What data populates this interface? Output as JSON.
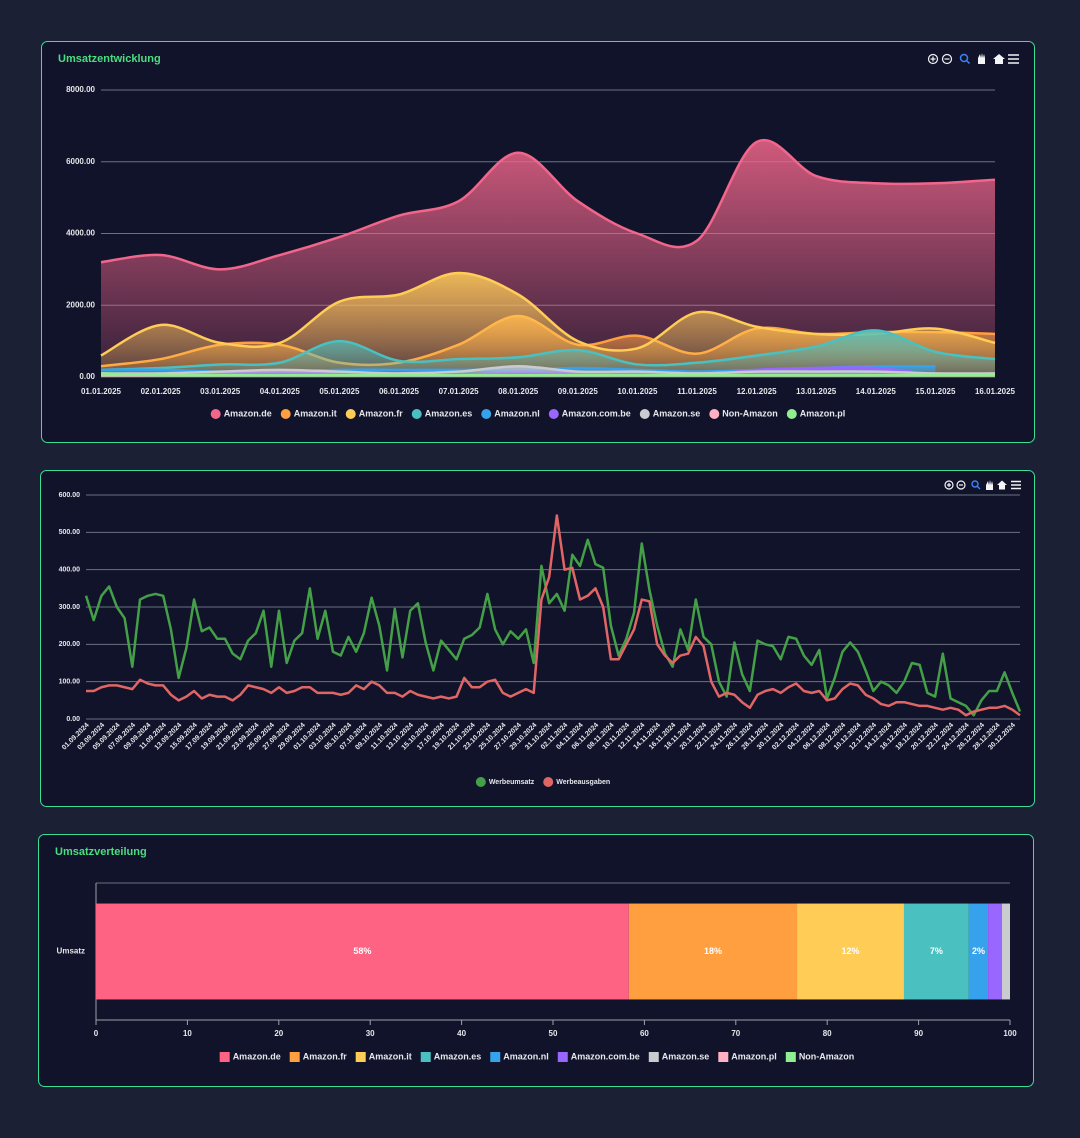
{
  "chart_data": [
    {
      "type": "area",
      "title": "Umsatzentwicklung",
      "categories": [
        "01.01.2025",
        "02.01.2025",
        "03.01.2025",
        "04.01.2025",
        "05.01.2025",
        "06.01.2025",
        "07.01.2025",
        "08.01.2025",
        "09.01.2025",
        "10.01.2025",
        "11.01.2025",
        "12.01.2025",
        "13.01.2025",
        "14.01.2025",
        "15.01.2025",
        "16.01.2025"
      ],
      "series": [
        {
          "name": "Amazon.de",
          "color": "#f2668b",
          "values": [
            3200,
            3400,
            3000,
            3400,
            3900,
            4500,
            4900,
            6250,
            4900,
            4000,
            3800,
            6550,
            5600,
            5400,
            5400,
            5500
          ]
        },
        {
          "name": "Amazon.it",
          "color": "#ff9f40",
          "values": [
            300,
            500,
            900,
            900,
            400,
            400,
            900,
            1700,
            900,
            1150,
            650,
            1350,
            1200,
            1250,
            1250,
            1200
          ]
        },
        {
          "name": "Amazon.fr",
          "color": "#ffcd56",
          "values": [
            600,
            1450,
            950,
            950,
            2100,
            2300,
            2900,
            2300,
            1000,
            800,
            1800,
            1400,
            1200,
            1200,
            1350,
            950
          ]
        },
        {
          "name": "Amazon.es",
          "color": "#4bc0c0",
          "values": [
            200,
            250,
            350,
            400,
            1000,
            450,
            500,
            550,
            750,
            350,
            400,
            600,
            850,
            1300,
            700,
            500
          ]
        },
        {
          "name": "Amazon.nl",
          "color": "#36a2eb",
          "values": [
            200,
            200,
            150,
            150,
            200,
            200,
            200,
            200,
            250,
            200,
            150,
            200,
            250,
            300,
            300,
            null
          ]
        },
        {
          "name": "Amazon.com.be",
          "color": "#9966ff",
          "values": [
            50,
            50,
            100,
            150,
            100,
            50,
            50,
            150,
            100,
            100,
            50,
            200,
            250,
            250,
            50,
            null
          ]
        },
        {
          "name": "Amazon.se",
          "color": "#c9cbcf",
          "values": [
            100,
            100,
            150,
            200,
            150,
            100,
            150,
            300,
            150,
            150,
            100,
            150,
            150,
            150,
            100,
            100
          ]
        },
        {
          "name": "Non-Amazon",
          "color": "#ffb1c1",
          "values": [
            50,
            50,
            50,
            50,
            50,
            50,
            50,
            50,
            50,
            50,
            50,
            50,
            50,
            50,
            50,
            50
          ]
        },
        {
          "name": "Amazon.pl",
          "color": "#90ee90",
          "values": [
            100,
            50,
            50,
            50,
            50,
            50,
            50,
            50,
            50,
            50,
            50,
            50,
            50,
            50,
            50,
            50
          ]
        }
      ],
      "ylim": [
        0,
        8000
      ],
      "yticks": [
        {
          "value": 0,
          "label": "0.00"
        },
        {
          "value": 2000,
          "label": "2000.00"
        },
        {
          "value": 4000,
          "label": "4000.00"
        },
        {
          "value": 6000,
          "label": "6000.00"
        },
        {
          "value": 8000,
          "label": "8000.00"
        }
      ],
      "grid": true,
      "legend": "bottom"
    },
    {
      "type": "line",
      "categories": [
        "01.09.2024",
        null,
        "03.09.2024",
        null,
        "05.09.2024",
        null,
        "07.09.2024",
        null,
        "09.09.2024",
        null,
        "11.09.2024",
        null,
        "13.09.2024",
        null,
        "15.09.2024",
        null,
        "17.09.2024",
        null,
        "19.09.2024",
        null,
        "21.09.2024",
        null,
        "23.09.2024",
        null,
        "25.09.2024",
        null,
        "27.09.2024",
        null,
        "29.09.2024",
        null,
        "01.10.2024",
        null,
        "03.10.2024",
        null,
        "05.10.2024",
        null,
        "07.10.2024",
        null,
        "09.10.2024",
        null,
        "11.10.2024",
        null,
        "13.10.2024",
        null,
        "15.10.2024",
        null,
        "17.10.2024",
        null,
        "19.10.2024",
        null,
        "21.10.2024",
        null,
        "23.10.2024",
        null,
        "25.10.2024",
        null,
        "27.10.2024",
        null,
        "29.10.2024",
        null,
        "31.10.2024",
        null,
        "02.11.2024",
        null,
        "04.11.2024",
        null,
        "06.11.2024",
        null,
        "08.11.2024",
        null,
        "10.11.2024",
        null,
        "12.11.2024",
        null,
        "14.11.2024",
        null,
        "16.11.2024",
        null,
        "18.11.2024",
        null,
        "20.11.2024",
        null,
        "22.11.2024",
        null,
        "24.11.2024",
        null,
        "26.11.2024",
        null,
        "28.11.2024",
        null,
        "30.11.2024",
        null,
        "02.12.2024",
        null,
        "04.12.2024",
        null,
        "06.12.2024",
        null,
        "08.12.2024",
        null,
        "10.12.2024",
        null,
        "12.12.2024",
        null,
        "14.12.2024",
        null,
        "16.12.2024",
        null,
        "18.12.2024",
        null,
        "20.12.2024",
        null,
        "22.12.2024",
        null,
        "24.12.2024",
        null,
        "26.12.2024",
        null,
        "28.12.2024",
        null,
        "30.12.2024",
        null
      ],
      "series": [
        {
          "name": "Werbeumsatz",
          "color": "#43a047",
          "values": [
            330,
            265,
            330,
            355,
            300,
            270,
            140,
            320,
            330,
            335,
            330,
            240,
            110,
            190,
            320,
            235,
            245,
            215,
            215,
            175,
            160,
            210,
            230,
            290,
            140,
            290,
            150,
            210,
            230,
            350,
            215,
            290,
            180,
            170,
            220,
            180,
            230,
            325,
            250,
            130,
            295,
            165,
            290,
            310,
            205,
            130,
            210,
            185,
            160,
            215,
            225,
            245,
            335,
            240,
            200,
            235,
            215,
            240,
            150,
            410,
            310,
            335,
            290,
            440,
            410,
            480,
            415,
            405,
            250,
            170,
            215,
            285,
            470,
            345,
            250,
            175,
            140,
            240,
            185,
            320,
            220,
            200,
            100,
            60,
            205,
            120,
            75,
            210,
            200,
            195,
            160,
            220,
            215,
            170,
            145,
            185,
            55,
            110,
            180,
            205,
            180,
            130,
            75,
            100,
            90,
            70,
            100,
            150,
            145,
            70,
            60,
            175,
            55,
            45,
            35,
            10,
            50,
            75,
            75,
            125,
            70,
            20
          ]
        },
        {
          "name": "Werbeausgaben",
          "color": "#e06666",
          "values": [
            75,
            75,
            85,
            90,
            90,
            85,
            80,
            105,
            95,
            90,
            90,
            65,
            50,
            60,
            75,
            55,
            65,
            60,
            60,
            50,
            65,
            90,
            85,
            80,
            70,
            85,
            70,
            75,
            85,
            85,
            70,
            70,
            70,
            65,
            70,
            90,
            80,
            100,
            90,
            70,
            70,
            60,
            75,
            65,
            60,
            55,
            60,
            55,
            60,
            110,
            85,
            85,
            100,
            105,
            70,
            60,
            70,
            80,
            70,
            320,
            380,
            545,
            400,
            405,
            320,
            330,
            350,
            300,
            160,
            160,
            200,
            240,
            320,
            315,
            200,
            170,
            150,
            170,
            175,
            220,
            195,
            100,
            60,
            70,
            65,
            45,
            30,
            65,
            75,
            80,
            70,
            85,
            95,
            75,
            70,
            75,
            50,
            55,
            80,
            95,
            90,
            65,
            55,
            40,
            35,
            45,
            45,
            40,
            35,
            35,
            30,
            25,
            30,
            25,
            10,
            20,
            25,
            30,
            30,
            35,
            25,
            10
          ]
        }
      ],
      "ylim": [
        0,
        600
      ],
      "yticks": [
        {
          "value": 0,
          "label": "0.00"
        },
        {
          "value": 100,
          "label": "100.00"
        },
        {
          "value": 200,
          "label": "200.00"
        },
        {
          "value": 300,
          "label": "300.00"
        },
        {
          "value": 400,
          "label": "400.00"
        },
        {
          "value": 500,
          "label": "500.00"
        },
        {
          "value": 600,
          "label": "600.00"
        }
      ],
      "grid": true,
      "legend": "bottom"
    },
    {
      "type": "bar",
      "orientation": "horizontal",
      "stacked": true,
      "title": "Umsatzverteilung",
      "categories": [
        "Umsatz"
      ],
      "series": [
        {
          "name": "Amazon.de",
          "color": "#ff6384",
          "values": [
            58.3
          ],
          "value_labels": [
            "58%"
          ]
        },
        {
          "name": "Amazon.fr",
          "color": "#ff9f40",
          "values": [
            18.4
          ],
          "value_labels": [
            "18%"
          ]
        },
        {
          "name": "Amazon.it",
          "color": "#ffcd56",
          "values": [
            11.7
          ],
          "value_labels": [
            "12%"
          ]
        },
        {
          "name": "Amazon.es",
          "color": "#4bc0c0",
          "values": [
            7.1
          ],
          "value_labels": [
            "7%"
          ]
        },
        {
          "name": "Amazon.nl",
          "color": "#36a2eb",
          "values": [
            2.1
          ],
          "value_labels": [
            "2%"
          ]
        },
        {
          "name": "Amazon.com.be",
          "color": "#9966ff",
          "values": [
            1.5
          ]
        },
        {
          "name": "Amazon.se",
          "color": "#c9cbcf",
          "values": [
            0.9
          ]
        },
        {
          "name": "Amazon.pl",
          "color": "#ffb1c1",
          "values": [
            0
          ]
        },
        {
          "name": "Non-Amazon",
          "color": "#90ee90",
          "values": [
            0
          ]
        }
      ],
      "xlim": [
        0,
        100
      ],
      "xticks": [
        0,
        10,
        20,
        30,
        40,
        50,
        60,
        70,
        80,
        90,
        100
      ],
      "grid": false,
      "legend": "bottom"
    }
  ]
}
